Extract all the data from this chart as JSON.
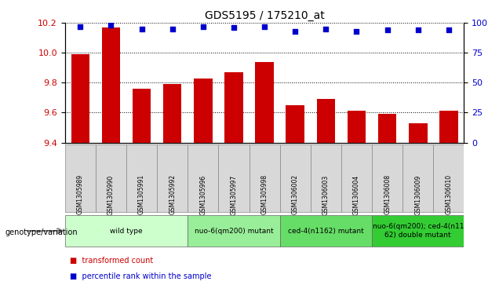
{
  "title": "GDS5195 / 175210_at",
  "samples": [
    "GSM1305989",
    "GSM1305990",
    "GSM1305991",
    "GSM1305992",
    "GSM1305996",
    "GSM1305997",
    "GSM1305998",
    "GSM1306002",
    "GSM1306003",
    "GSM1306004",
    "GSM1306008",
    "GSM1306009",
    "GSM1306010"
  ],
  "bar_values": [
    9.99,
    10.17,
    9.76,
    9.79,
    9.83,
    9.87,
    9.94,
    9.65,
    9.69,
    9.61,
    9.59,
    9.53,
    9.61
  ],
  "percentile_values": [
    97,
    98,
    95,
    95,
    97,
    96,
    97,
    93,
    95,
    93,
    94,
    94,
    94
  ],
  "ylim_left": [
    9.4,
    10.2
  ],
  "ylim_right": [
    0,
    100
  ],
  "yticks_left": [
    9.4,
    9.6,
    9.8,
    10.0,
    10.2
  ],
  "yticks_right": [
    0,
    25,
    50,
    75,
    100
  ],
  "bar_color": "#cc0000",
  "dot_color": "#0000cc",
  "bar_baseline": 9.4,
  "groups": [
    {
      "label": "wild type",
      "start": 0,
      "end": 3,
      "color": "#ccffcc"
    },
    {
      "label": "nuo-6(qm200) mutant",
      "start": 4,
      "end": 6,
      "color": "#99ee99"
    },
    {
      "label": "ced-4(n1162) mutant",
      "start": 7,
      "end": 9,
      "color": "#66dd66"
    },
    {
      "label": "nuo-6(qm200); ced-4(n11\n62) double mutant",
      "start": 10,
      "end": 12,
      "color": "#33cc33"
    }
  ],
  "background_color": "#ffffff",
  "sample_cell_color": "#d8d8d8",
  "genotype_label": "genotype/variation",
  "legend_items": [
    {
      "label": "transformed count",
      "color": "#cc0000"
    },
    {
      "label": "percentile rank within the sample",
      "color": "#0000cc"
    }
  ]
}
